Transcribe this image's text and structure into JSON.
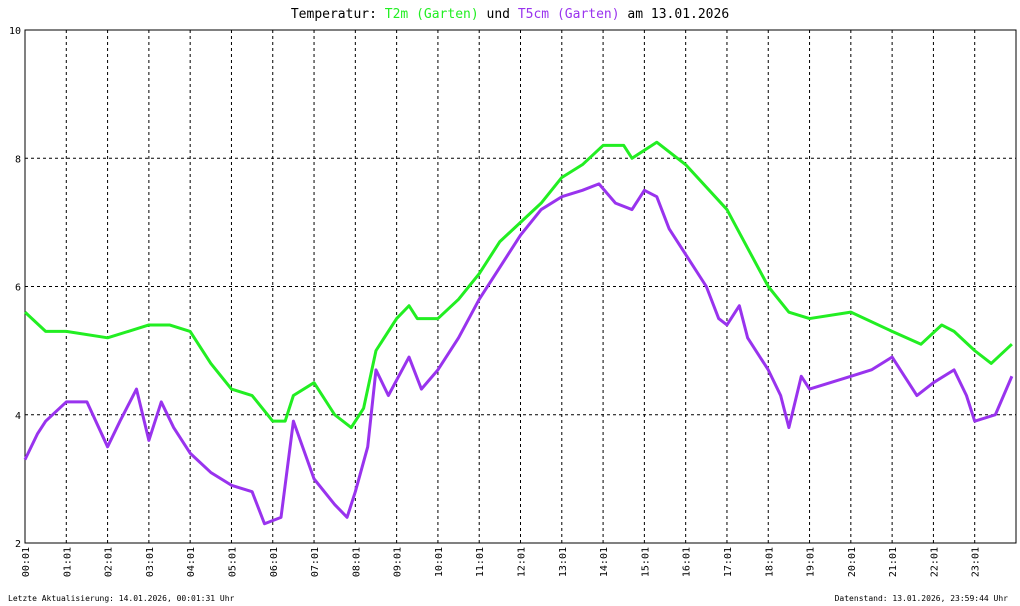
{
  "chart_data": {
    "type": "line",
    "title_parts": [
      "Temperatur:",
      "und",
      "am 13.01.2026"
    ],
    "footer_left": "Letzte Aktualisierung: 14.01.2026, 00:01:31 Uhr",
    "footer_right": "Datenstand: 13.01.2026, 23:59:44 Uhr",
    "xlim": [
      0,
      24
    ],
    "ylim": [
      2,
      10
    ],
    "yticks": [
      2,
      4,
      6,
      8,
      10
    ],
    "xticks": [
      {
        "value": 0,
        "label": "00:01"
      },
      {
        "value": 1,
        "label": "01:01"
      },
      {
        "value": 2,
        "label": "02:01"
      },
      {
        "value": 3,
        "label": "03:01"
      },
      {
        "value": 4,
        "label": "04:01"
      },
      {
        "value": 5,
        "label": "05:01"
      },
      {
        "value": 6,
        "label": "06:01"
      },
      {
        "value": 7,
        "label": "07:01"
      },
      {
        "value": 8,
        "label": "08:01"
      },
      {
        "value": 9,
        "label": "09:01"
      },
      {
        "value": 10,
        "label": "10:01"
      },
      {
        "value": 11,
        "label": "11:01"
      },
      {
        "value": 12,
        "label": "12:01"
      },
      {
        "value": 13,
        "label": "13:01"
      },
      {
        "value": 14,
        "label": "14:01"
      },
      {
        "value": 15,
        "label": "15:01"
      },
      {
        "value": 16,
        "label": "16:01"
      },
      {
        "value": 17,
        "label": "17:01"
      },
      {
        "value": 18,
        "label": "18:01"
      },
      {
        "value": 19,
        "label": "19:01"
      },
      {
        "value": 20,
        "label": "20:01"
      },
      {
        "value": 21,
        "label": "21:01"
      },
      {
        "value": 22,
        "label": "22:01"
      },
      {
        "value": 23,
        "label": "23:01"
      }
    ],
    "grid": true,
    "series": [
      {
        "name": "T2m (Garten)",
        "color": "#22ee22",
        "x": [
          0,
          0.5,
          1,
          2,
          2.5,
          3,
          3.5,
          4,
          4.5,
          5,
          5.5,
          6,
          6.3,
          6.5,
          7,
          7.5,
          7.9,
          8.2,
          8.5,
          9,
          9.3,
          9.5,
          10,
          10.5,
          11,
          11.5,
          12,
          12.5,
          13,
          13.5,
          14,
          14.5,
          14.7,
          15.3,
          16,
          17,
          17.5,
          18,
          18.5,
          19,
          20,
          21,
          21.7,
          22.2,
          22.5,
          23,
          23.4,
          23.9
        ],
        "values": [
          5.6,
          5.3,
          5.3,
          5.2,
          5.3,
          5.4,
          5.4,
          5.3,
          4.8,
          4.4,
          4.3,
          3.9,
          3.9,
          4.3,
          4.5,
          4.0,
          3.8,
          4.1,
          5.0,
          5.5,
          5.7,
          5.5,
          5.5,
          5.8,
          6.2,
          6.7,
          7.0,
          7.3,
          7.7,
          7.9,
          8.2,
          8.2,
          8.0,
          8.25,
          7.9,
          7.2,
          6.6,
          6.0,
          5.6,
          5.5,
          5.6,
          5.3,
          5.1,
          5.4,
          5.3,
          5.0,
          4.8,
          5.1
        ]
      },
      {
        "name": "T5cm (Garten)",
        "color": "#9933ee",
        "x": [
          0,
          0.3,
          0.5,
          1,
          1.5,
          2,
          2.3,
          2.7,
          3,
          3.3,
          3.6,
          4,
          4.5,
          5,
          5.5,
          5.8,
          6.2,
          6.5,
          7,
          7.5,
          7.8,
          8,
          8.3,
          8.5,
          8.8,
          9.3,
          9.6,
          10,
          10.5,
          11,
          11.5,
          12,
          12.5,
          13,
          13.5,
          13.9,
          14.3,
          14.7,
          15,
          15.3,
          15.6,
          16,
          16.5,
          16.8,
          17,
          17.3,
          17.5,
          18,
          18.3,
          18.5,
          18.8,
          19,
          19.5,
          20,
          20.5,
          21,
          21.3,
          21.6,
          22,
          22.5,
          22.8,
          23,
          23.5,
          23.9
        ],
        "values": [
          3.3,
          3.7,
          3.9,
          4.2,
          4.2,
          3.5,
          3.9,
          4.4,
          3.6,
          4.2,
          3.8,
          3.4,
          3.1,
          2.9,
          2.8,
          2.3,
          2.4,
          3.9,
          3.0,
          2.6,
          2.4,
          2.8,
          3.5,
          4.7,
          4.3,
          4.9,
          4.4,
          4.7,
          5.2,
          5.8,
          6.3,
          6.8,
          7.2,
          7.4,
          7.5,
          7.6,
          7.3,
          7.2,
          7.5,
          7.4,
          6.9,
          6.5,
          6.0,
          5.5,
          5.4,
          5.7,
          5.2,
          4.7,
          4.3,
          3.8,
          4.6,
          4.4,
          4.5,
          4.6,
          4.7,
          4.9,
          4.6,
          4.3,
          4.5,
          4.7,
          4.3,
          3.9,
          4.0,
          4.6
        ]
      }
    ]
  }
}
